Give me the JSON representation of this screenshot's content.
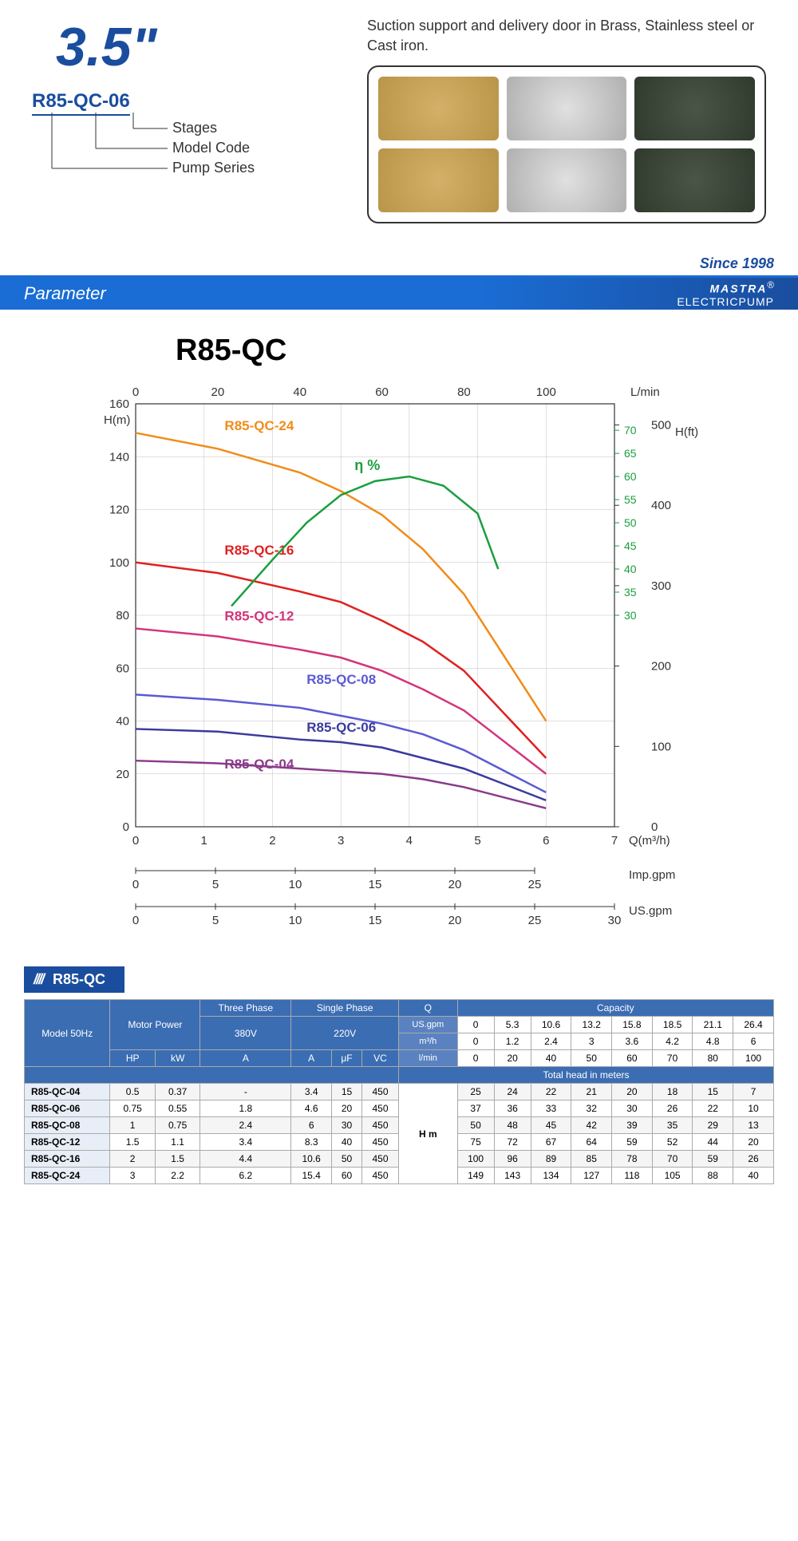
{
  "header": {
    "size": "3.5\"",
    "model_code": "R85-QC-06",
    "breakdown": {
      "stages": "Stages",
      "model_code": "Model Code",
      "pump_series": "Pump Series"
    },
    "suction_text": "Suction support and delivery door in Brass, Stainless steel or Cast iron.",
    "since": "Since 1998",
    "param_label": "Parameter",
    "brand_top": "MASTRA",
    "brand_bottom": "ELECTRICPUMP"
  },
  "chart": {
    "title": "R85-QC",
    "type": "line",
    "x_axis_primary": {
      "label": "Q(m³/h)",
      "ticks": [
        0,
        1,
        2,
        3,
        4,
        5,
        6,
        7
      ],
      "xlim": [
        0,
        7
      ]
    },
    "x_axis_top": {
      "label": "L/min",
      "ticks": [
        0,
        20,
        40,
        60,
        80,
        100
      ]
    },
    "x_axis_imp": {
      "label": "Imp.gpm",
      "ticks": [
        0,
        5,
        10,
        15,
        20,
        25
      ]
    },
    "x_axis_us": {
      "label": "US.gpm",
      "ticks": [
        0,
        5,
        10,
        15,
        20,
        25,
        30
      ]
    },
    "y_axis_left": {
      "label": "H(m)",
      "ticks": [
        0,
        20,
        40,
        60,
        80,
        100,
        120,
        140,
        160
      ],
      "ylim": [
        0,
        160
      ]
    },
    "y_axis_right_ft": {
      "label": "H(ft)",
      "ticks": [
        0,
        100,
        200,
        300,
        400,
        500
      ]
    },
    "y_axis_eff": {
      "label": "η %",
      "ticks": [
        30,
        35,
        40,
        45,
        50,
        55,
        60,
        65,
        70
      ],
      "color": "#1a9e3e"
    },
    "grid_color": "#c0c0c0",
    "background_color": "#ffffff",
    "series": [
      {
        "name": "R85-QC-24",
        "color": "#f08c1a",
        "label_pos": [
          1.3,
          150
        ],
        "data": [
          [
            0,
            149
          ],
          [
            1.2,
            143
          ],
          [
            2.4,
            134
          ],
          [
            3.0,
            127
          ],
          [
            3.6,
            118
          ],
          [
            4.2,
            105
          ],
          [
            4.8,
            88
          ],
          [
            6,
            40
          ]
        ]
      },
      {
        "name": "R85-QC-16",
        "color": "#e02020",
        "label_pos": [
          1.3,
          103
        ],
        "data": [
          [
            0,
            100
          ],
          [
            1.2,
            96
          ],
          [
            2.4,
            89
          ],
          [
            3.0,
            85
          ],
          [
            3.6,
            78
          ],
          [
            4.2,
            70
          ],
          [
            4.8,
            59
          ],
          [
            6,
            26
          ]
        ]
      },
      {
        "name": "R85-QC-12",
        "color": "#d4347c",
        "label_pos": [
          1.3,
          78
        ],
        "data": [
          [
            0,
            75
          ],
          [
            1.2,
            72
          ],
          [
            2.4,
            67
          ],
          [
            3.0,
            64
          ],
          [
            3.6,
            59
          ],
          [
            4.2,
            52
          ],
          [
            4.8,
            44
          ],
          [
            6,
            20
          ]
        ]
      },
      {
        "name": "R85-QC-08",
        "color": "#5a5ad4",
        "label_pos": [
          2.5,
          54
        ],
        "data": [
          [
            0,
            50
          ],
          [
            1.2,
            48
          ],
          [
            2.4,
            45
          ],
          [
            3.0,
            42
          ],
          [
            3.6,
            39
          ],
          [
            4.2,
            35
          ],
          [
            4.8,
            29
          ],
          [
            6,
            13
          ]
        ]
      },
      {
        "name": "R85-QC-06",
        "color": "#3a3a9e",
        "label_pos": [
          2.5,
          36
        ],
        "data": [
          [
            0,
            37
          ],
          [
            1.2,
            36
          ],
          [
            2.4,
            33
          ],
          [
            3.0,
            32
          ],
          [
            3.6,
            30
          ],
          [
            4.2,
            26
          ],
          [
            4.8,
            22
          ],
          [
            6,
            10
          ]
        ]
      },
      {
        "name": "R85-QC-04",
        "color": "#8a3a8a",
        "label_pos": [
          1.3,
          22
        ],
        "data": [
          [
            0,
            25
          ],
          [
            1.2,
            24
          ],
          [
            2.4,
            22
          ],
          [
            3.0,
            21
          ],
          [
            3.6,
            20
          ],
          [
            4.2,
            18
          ],
          [
            4.8,
            15
          ],
          [
            6,
            7
          ]
        ]
      }
    ],
    "efficiency": {
      "color": "#1a9e3e",
      "label": "η %",
      "data": [
        [
          1.4,
          32
        ],
        [
          2.0,
          42
        ],
        [
          2.5,
          50
        ],
        [
          3.0,
          56
        ],
        [
          3.5,
          59
        ],
        [
          4.0,
          60
        ],
        [
          4.5,
          58
        ],
        [
          5.0,
          52
        ],
        [
          5.3,
          40
        ]
      ]
    },
    "line_width": 2.5,
    "label_fontsize": 17
  },
  "table": {
    "stripe_title": "R85-QC",
    "headers": {
      "model": "Model 50Hz",
      "motor": "Motor Power",
      "three_phase": "Three Phase",
      "single_phase": "Single Phase",
      "q": "Q",
      "capacity": "Capacity",
      "us_gpm": "US.gpm",
      "m3h": "m³/h",
      "lmin": "l/min",
      "v380": "380V",
      "v220": "220V",
      "hp": "HP",
      "kw": "kW",
      "a": "A",
      "uf": "μF",
      "vc": "VC",
      "total_head": "Total head in meters",
      "hm": "H m"
    },
    "capacity_rows": {
      "us_gpm": [
        0,
        5.3,
        10.6,
        13.2,
        15.8,
        18.5,
        21.1,
        26.4
      ],
      "m3h": [
        0,
        1.2,
        2.4,
        3.0,
        3.6,
        4.2,
        4.8,
        6
      ],
      "lmin": [
        0,
        20,
        40,
        50,
        60,
        70,
        80,
        100
      ]
    },
    "rows": [
      {
        "model": "R85-QC-04",
        "hp": 0.5,
        "kw": 0.37,
        "a380": "-",
        "a220": 3.4,
        "uf": 15,
        "vc": 450,
        "heads": [
          25,
          24,
          22,
          21,
          20,
          18,
          15,
          7
        ]
      },
      {
        "model": "R85-QC-06",
        "hp": 0.75,
        "kw": 0.55,
        "a380": 1.8,
        "a220": 4.6,
        "uf": 20,
        "vc": 450,
        "heads": [
          37,
          36,
          33,
          32,
          30,
          26,
          22,
          10
        ]
      },
      {
        "model": "R85-QC-08",
        "hp": 1,
        "kw": 0.75,
        "a380": 2.4,
        "a220": 6,
        "uf": 30,
        "vc": 450,
        "heads": [
          50,
          48,
          45,
          42,
          39,
          35,
          29,
          13
        ]
      },
      {
        "model": "R85-QC-12",
        "hp": 1.5,
        "kw": 1.1,
        "a380": 3.4,
        "a220": 8.3,
        "uf": 40,
        "vc": 450,
        "heads": [
          75,
          72,
          67,
          64,
          59,
          52,
          44,
          20
        ]
      },
      {
        "model": "R85-QC-16",
        "hp": 2,
        "kw": 1.5,
        "a380": 4.4,
        "a220": 10.6,
        "uf": 50,
        "vc": 450,
        "heads": [
          100,
          96,
          89,
          85,
          78,
          70,
          59,
          26
        ]
      },
      {
        "model": "R85-QC-24",
        "hp": 3,
        "kw": 2.2,
        "a380": 6.2,
        "a220": 15.4,
        "uf": 60,
        "vc": 450,
        "heads": [
          149,
          143,
          134,
          127,
          118,
          105,
          88,
          40
        ]
      }
    ]
  }
}
